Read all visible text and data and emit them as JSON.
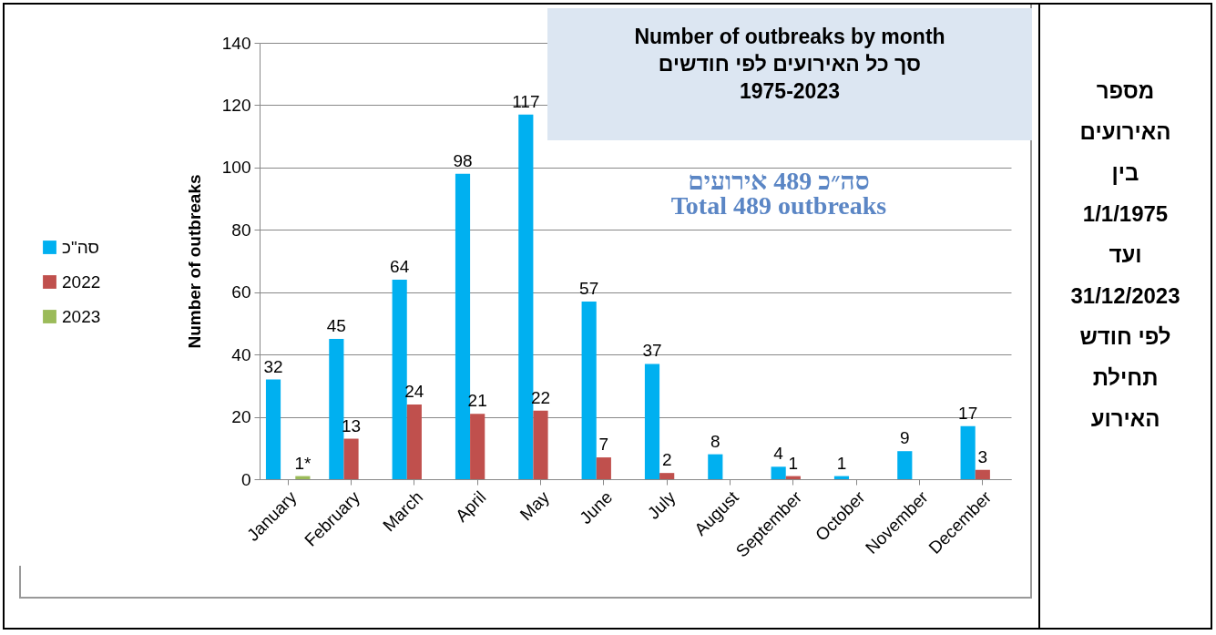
{
  "chart_data": {
    "type": "bar",
    "title": "Number of outbreaks by month",
    "subtitle": "סך כל האירועים לפי חודשים\n1975-2023",
    "ylabel": "Number of outbreaks",
    "annotations": [
      "סה״כ 489 אירועים",
      "Total 489 outbreaks",
      "מספר האירועים בין 1/1/1975 ועד 31/12/2023 לפי חודש תחילת האירוע"
    ],
    "categories": [
      "January",
      "February",
      "March",
      "April",
      "May",
      "June",
      "July",
      "August",
      "September",
      "October",
      "November",
      "December"
    ],
    "series": [
      {
        "name": "סה\"כ",
        "color": "#00b0f0",
        "values": [
          32,
          45,
          64,
          98,
          117,
          57,
          37,
          8,
          4,
          1,
          9,
          17
        ],
        "value_labels": [
          "32",
          "45",
          "64",
          "98",
          "117",
          "57",
          "37",
          "8",
          "4",
          "1",
          "9",
          "17"
        ]
      },
      {
        "name": "2022",
        "color": "#c0504d",
        "values": [
          null,
          13,
          24,
          21,
          22,
          7,
          2,
          null,
          1,
          null,
          null,
          3
        ],
        "value_labels": [
          null,
          "13",
          "24",
          "21",
          "22",
          "7",
          "2",
          null,
          "1",
          null,
          null,
          "3"
        ]
      },
      {
        "name": "2023",
        "color": "#9bbb59",
        "values": [
          1,
          null,
          null,
          null,
          null,
          null,
          null,
          null,
          null,
          null,
          null,
          null
        ],
        "value_labels": [
          "1*",
          null,
          null,
          null,
          null,
          null,
          null,
          null,
          null,
          null,
          null,
          null
        ]
      }
    ],
    "ylim": [
      0,
      140
    ],
    "yticks": [
      0,
      20,
      40,
      60,
      80,
      100,
      120,
      140
    ],
    "grid": "y",
    "legend": "left"
  }
}
